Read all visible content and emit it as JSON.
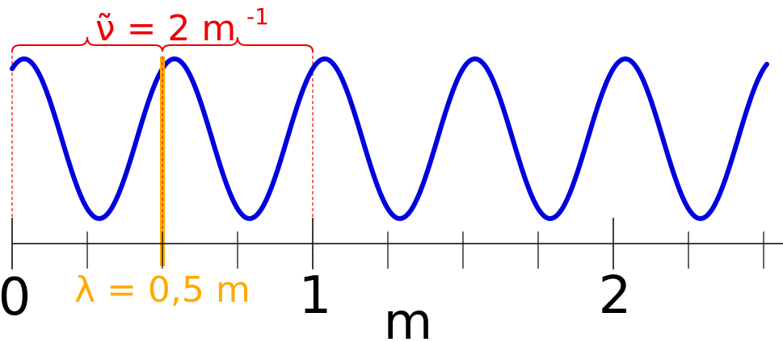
{
  "diagram": {
    "wavenumber_label": "ν̃ = 2 m",
    "wavenumber_exponent": "-1",
    "wavelength_label": "λ = 0,5 m",
    "axis_unit": "m",
    "major_tick_labels": [
      "0",
      "1",
      "2"
    ],
    "wave_periods": 5,
    "axis_range": [
      0,
      2.5
    ],
    "minor_tick_step": 0.25,
    "wavelength": 0.5,
    "wavenumber": 2,
    "colors": {
      "wave": "#0000dd",
      "wavenumber": "#ee0000",
      "wavelength": "#ffaa00",
      "axis": "#000000"
    }
  }
}
